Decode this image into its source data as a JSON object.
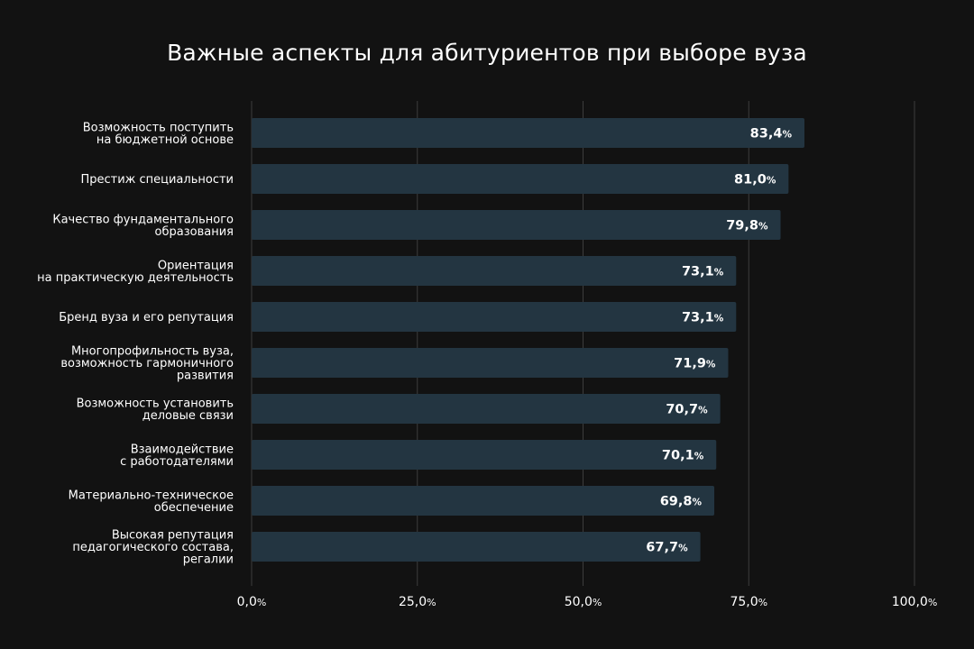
{
  "chart_data": {
    "type": "bar",
    "orientation": "horizontal",
    "title": "Важные аспекты для абитуриентов при выборе вуза",
    "categories": [
      [
        "Возможность поступить",
        "на бюджетной основе"
      ],
      [
        "Престиж специальности"
      ],
      [
        "Качество фундаментального",
        "образования"
      ],
      [
        "Ориентация",
        "на практическую деятельность"
      ],
      [
        "Бренд вуза и его репутация"
      ],
      [
        "Многопрофильность вуза,",
        "возможность гармоничного",
        "развития"
      ],
      [
        "Возможность установить",
        "деловые связи"
      ],
      [
        "Взаимодействие",
        "с работодателями"
      ],
      [
        "Материально-техническое",
        "обеспечение"
      ],
      [
        "Высокая репутация",
        "педагогического состава,",
        "регалии"
      ]
    ],
    "values": [
      83.4,
      81.0,
      79.8,
      73.1,
      73.1,
      71.9,
      70.7,
      70.1,
      69.8,
      67.7
    ],
    "value_labels": [
      "83,4",
      "81,0",
      "79,8",
      "73,1",
      "73,1",
      "71,9",
      "70,7",
      "70,1",
      "69,8",
      "67,7"
    ],
    "value_suffix": "%",
    "xlim": [
      0,
      100
    ],
    "ticks": [
      0,
      25,
      50,
      75,
      100
    ],
    "tick_labels": [
      "0,0",
      "25,0",
      "50,0",
      "75,0",
      "100,0"
    ],
    "tick_suffix": "%",
    "grid": true,
    "colors": {
      "background": "#121212",
      "bar": "#233541",
      "grid": "#3c3c3c",
      "text": "#ffffff"
    }
  }
}
